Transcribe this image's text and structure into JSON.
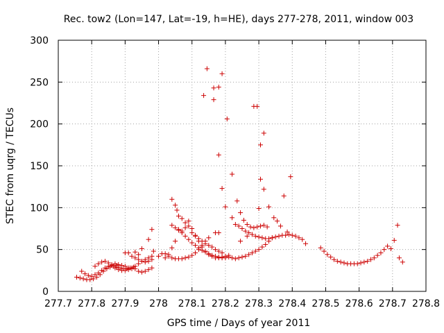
{
  "chart_data": {
    "type": "scatter",
    "title": "Rec. tow2 (Lon=147, Lat=-19, h=HE), days 277-278, 2011, window 003",
    "xlabel": "GPS time / Days of year 2011",
    "ylabel": "STEC from uqrg / TECUs",
    "xlim": [
      277.7,
      278.8
    ],
    "ylim": [
      0,
      300
    ],
    "xticks": [
      277.7,
      277.8,
      277.9,
      278.0,
      278.1,
      278.2,
      278.3,
      278.4,
      278.5,
      278.6,
      278.7,
      278.8
    ],
    "xtick_labels": [
      "277.7",
      "277.8",
      "277.9",
      "278",
      "278.1",
      "278.2",
      "278.3",
      "278.4",
      "278.5",
      "278.6",
      "278.7",
      "278.8"
    ],
    "yticks": [
      0,
      50,
      100,
      150,
      200,
      250,
      300
    ],
    "ytick_labels": [
      "0",
      "50",
      "100",
      "150",
      "200",
      "250",
      "300"
    ],
    "grid": true,
    "marker": "+",
    "color": "#cc0000",
    "points": [
      [
        277.755,
        17
      ],
      [
        277.765,
        16
      ],
      [
        277.775,
        15
      ],
      [
        277.785,
        14
      ],
      [
        277.795,
        14
      ],
      [
        277.805,
        15
      ],
      [
        277.815,
        17
      ],
      [
        277.825,
        20
      ],
      [
        277.835,
        24
      ],
      [
        277.845,
        27
      ],
      [
        277.855,
        29
      ],
      [
        277.865,
        30
      ],
      [
        277.875,
        31
      ],
      [
        277.77,
        24
      ],
      [
        277.78,
        21
      ],
      [
        277.79,
        19
      ],
      [
        277.8,
        18
      ],
      [
        277.81,
        20
      ],
      [
        277.82,
        22
      ],
      [
        277.83,
        25
      ],
      [
        277.84,
        28
      ],
      [
        277.85,
        30
      ],
      [
        277.86,
        32
      ],
      [
        277.87,
        33
      ],
      [
        277.88,
        32
      ],
      [
        277.89,
        31
      ],
      [
        277.9,
        30
      ],
      [
        277.91,
        28
      ],
      [
        277.92,
        27
      ],
      [
        277.93,
        27
      ],
      [
        277.81,
        30
      ],
      [
        277.82,
        33
      ],
      [
        277.83,
        35
      ],
      [
        277.84,
        36
      ],
      [
        277.85,
        34
      ],
      [
        277.86,
        31
      ],
      [
        277.87,
        28
      ],
      [
        277.88,
        26
      ],
      [
        277.89,
        25
      ],
      [
        277.9,
        25
      ],
      [
        277.91,
        26
      ],
      [
        277.92,
        28
      ],
      [
        277.93,
        30
      ],
      [
        277.94,
        33
      ],
      [
        277.95,
        36
      ],
      [
        277.96,
        38
      ],
      [
        277.97,
        40
      ],
      [
        277.98,
        42
      ],
      [
        277.875,
        29
      ],
      [
        277.885,
        28
      ],
      [
        277.895,
        27
      ],
      [
        277.905,
        27
      ],
      [
        277.915,
        28
      ],
      [
        277.925,
        29
      ],
      [
        277.9,
        46
      ],
      [
        277.91,
        46
      ],
      [
        277.92,
        42
      ],
      [
        277.93,
        40
      ],
      [
        277.94,
        38
      ],
      [
        277.95,
        36
      ],
      [
        277.96,
        35
      ],
      [
        277.97,
        36
      ],
      [
        277.98,
        38
      ],
      [
        277.93,
        47
      ],
      [
        277.94,
        44
      ],
      [
        277.95,
        51
      ],
      [
        277.97,
        62
      ],
      [
        277.98,
        74
      ],
      [
        277.985,
        48
      ],
      [
        277.94,
        24
      ],
      [
        277.95,
        23
      ],
      [
        277.96,
        24
      ],
      [
        277.97,
        26
      ],
      [
        277.98,
        28
      ],
      [
        278.0,
        42
      ],
      [
        278.01,
        45
      ],
      [
        278.02,
        45
      ],
      [
        278.03,
        42
      ],
      [
        278.04,
        40
      ],
      [
        278.05,
        39
      ],
      [
        278.06,
        39
      ],
      [
        278.07,
        39
      ],
      [
        278.08,
        40
      ],
      [
        278.09,
        41
      ],
      [
        278.1,
        43
      ],
      [
        278.11,
        46
      ],
      [
        278.12,
        50
      ],
      [
        278.13,
        55
      ],
      [
        278.14,
        60
      ],
      [
        278.15,
        64
      ],
      [
        278.04,
        110
      ],
      [
        278.05,
        103
      ],
      [
        278.055,
        97
      ],
      [
        278.06,
        90
      ],
      [
        278.07,
        87
      ],
      [
        278.08,
        82
      ],
      [
        278.09,
        84
      ],
      [
        278.1,
        75
      ],
      [
        278.11,
        67
      ],
      [
        278.12,
        60
      ],
      [
        278.13,
        53
      ],
      [
        278.14,
        48
      ],
      [
        278.15,
        44
      ],
      [
        278.16,
        42
      ],
      [
        278.17,
        40
      ],
      [
        278.18,
        40
      ],
      [
        278.19,
        41
      ],
      [
        278.2,
        42
      ],
      [
        278.21,
        43
      ],
      [
        278.04,
        79
      ],
      [
        278.05,
        76
      ],
      [
        278.06,
        73
      ],
      [
        278.07,
        70
      ],
      [
        278.08,
        66
      ],
      [
        278.09,
        62
      ],
      [
        278.1,
        58
      ],
      [
        278.11,
        55
      ],
      [
        278.12,
        52
      ],
      [
        278.13,
        49
      ],
      [
        278.14,
        47
      ],
      [
        278.15,
        45
      ],
      [
        278.16,
        43
      ],
      [
        278.17,
        42
      ],
      [
        278.18,
        41
      ],
      [
        278.19,
        40
      ],
      [
        278.2,
        40
      ],
      [
        278.21,
        41
      ],
      [
        278.02,
        40
      ],
      [
        278.03,
        44
      ],
      [
        278.04,
        52
      ],
      [
        278.05,
        60
      ],
      [
        278.06,
        74
      ],
      [
        278.07,
        72
      ],
      [
        278.08,
        76
      ],
      [
        278.09,
        78
      ],
      [
        278.1,
        70
      ],
      [
        278.11,
        66
      ],
      [
        278.12,
        63
      ],
      [
        278.13,
        60
      ],
      [
        278.14,
        57
      ],
      [
        278.15,
        55
      ],
      [
        278.16,
        53
      ],
      [
        278.17,
        50
      ],
      [
        278.18,
        48
      ],
      [
        278.19,
        46
      ],
      [
        278.145,
        266
      ],
      [
        278.18,
        244
      ],
      [
        278.19,
        260
      ],
      [
        278.165,
        243
      ],
      [
        278.165,
        229
      ],
      [
        278.135,
        234
      ],
      [
        278.205,
        206
      ],
      [
        278.18,
        163
      ],
      [
        278.19,
        123
      ],
      [
        278.2,
        101
      ],
      [
        278.17,
        70
      ],
      [
        278.18,
        70
      ],
      [
        278.285,
        221
      ],
      [
        278.295,
        221
      ],
      [
        278.305,
        175
      ],
      [
        278.315,
        189
      ],
      [
        278.305,
        134
      ],
      [
        278.315,
        122
      ],
      [
        278.3,
        99
      ],
      [
        278.22,
        140
      ],
      [
        278.235,
        108
      ],
      [
        278.245,
        94
      ],
      [
        278.255,
        85
      ],
      [
        278.265,
        80
      ],
      [
        278.275,
        77
      ],
      [
        278.285,
        76
      ],
      [
        278.295,
        77
      ],
      [
        278.305,
        78
      ],
      [
        278.315,
        79
      ],
      [
        278.325,
        77
      ],
      [
        278.22,
        88
      ],
      [
        278.23,
        80
      ],
      [
        278.24,
        78
      ],
      [
        278.25,
        75
      ],
      [
        278.26,
        72
      ],
      [
        278.27,
        70
      ],
      [
        278.28,
        68
      ],
      [
        278.29,
        66
      ],
      [
        278.3,
        65
      ],
      [
        278.31,
        64
      ],
      [
        278.32,
        63
      ],
      [
        278.33,
        63
      ],
      [
        278.34,
        64
      ],
      [
        278.35,
        65
      ],
      [
        278.36,
        66
      ],
      [
        278.37,
        67
      ],
      [
        278.38,
        67
      ],
      [
        278.39,
        68
      ],
      [
        278.4,
        67
      ],
      [
        278.41,
        66
      ],
      [
        278.42,
        64
      ],
      [
        278.43,
        62
      ],
      [
        278.22,
        40
      ],
      [
        278.23,
        39
      ],
      [
        278.24,
        40
      ],
      [
        278.25,
        41
      ],
      [
        278.26,
        42
      ],
      [
        278.27,
        44
      ],
      [
        278.28,
        46
      ],
      [
        278.29,
        48
      ],
      [
        278.3,
        50
      ],
      [
        278.31,
        53
      ],
      [
        278.32,
        56
      ],
      [
        278.33,
        60
      ],
      [
        278.34,
        64
      ],
      [
        278.245,
        60
      ],
      [
        278.265,
        66
      ],
      [
        278.33,
        101
      ],
      [
        278.345,
        88
      ],
      [
        278.355,
        84
      ],
      [
        278.365,
        78
      ],
      [
        278.375,
        114
      ],
      [
        278.385,
        71
      ],
      [
        278.395,
        137
      ],
      [
        278.44,
        57
      ],
      [
        278.485,
        52
      ],
      [
        278.495,
        48
      ],
      [
        278.505,
        44
      ],
      [
        278.515,
        41
      ],
      [
        278.525,
        38
      ],
      [
        278.535,
        36
      ],
      [
        278.545,
        35
      ],
      [
        278.555,
        34
      ],
      [
        278.565,
        33
      ],
      [
        278.575,
        33
      ],
      [
        278.585,
        33
      ],
      [
        278.595,
        33
      ],
      [
        278.605,
        34
      ],
      [
        278.615,
        35
      ],
      [
        278.625,
        36
      ],
      [
        278.635,
        38
      ],
      [
        278.645,
        40
      ],
      [
        278.655,
        43
      ],
      [
        278.665,
        46
      ],
      [
        278.675,
        50
      ],
      [
        278.685,
        54
      ],
      [
        278.695,
        51
      ],
      [
        278.705,
        61
      ],
      [
        278.715,
        79
      ],
      [
        278.72,
        40
      ],
      [
        278.73,
        35
      ]
    ]
  }
}
